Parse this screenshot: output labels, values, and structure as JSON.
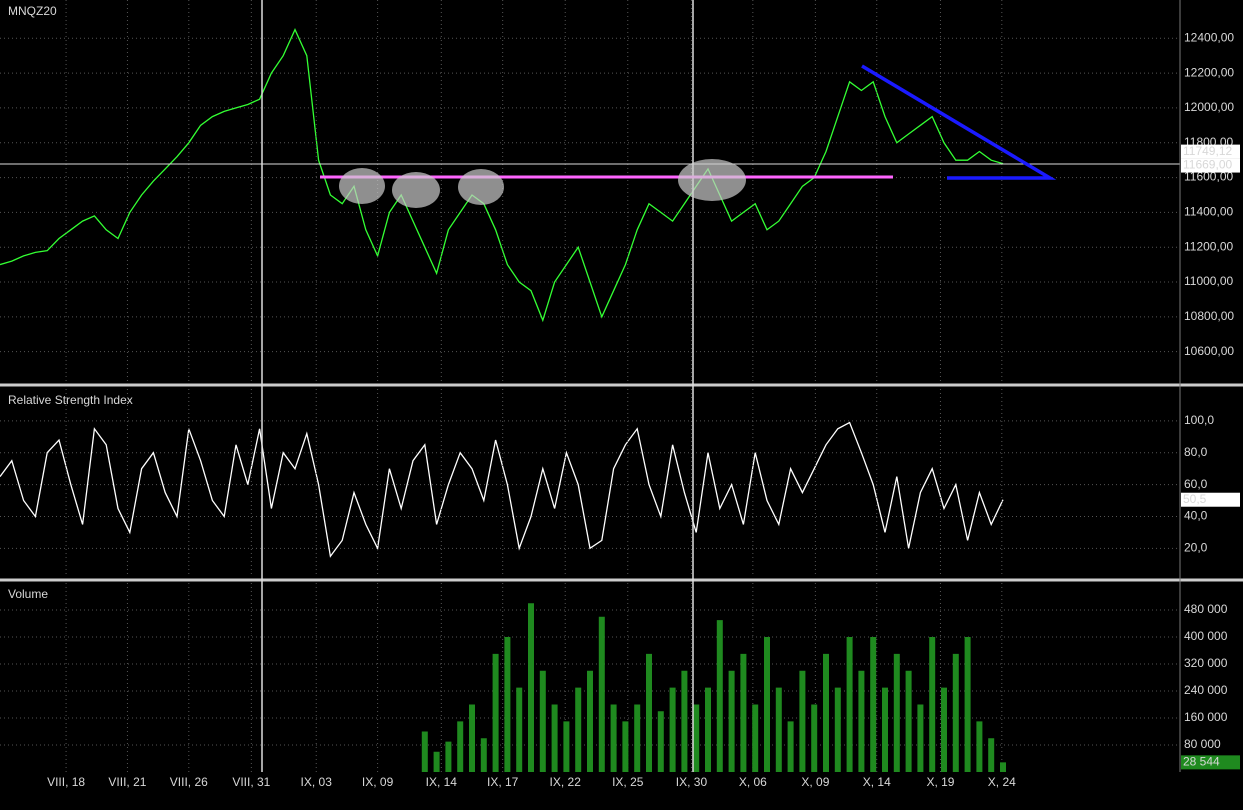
{
  "chart_data": [
    {
      "type": "line",
      "title": "MNQZ20",
      "color": "#33ff33",
      "x": [
        0,
        1,
        2,
        3,
        4,
        5,
        6,
        7,
        8,
        9,
        10,
        11,
        12,
        13,
        14,
        15,
        16,
        17,
        18,
        19,
        20,
        21,
        22,
        23,
        24,
        25,
        26,
        27,
        28,
        29,
        30,
        31,
        32,
        33,
        34,
        35,
        36,
        37,
        38,
        39,
        40,
        41,
        42,
        43,
        44,
        45,
        46,
        47,
        48,
        49,
        50,
        51,
        52,
        53,
        54,
        55,
        56,
        57,
        58,
        59,
        60,
        61,
        62,
        63,
        64,
        65,
        66,
        67,
        68,
        69,
        70,
        71,
        72,
        73,
        74,
        75,
        76,
        77,
        78,
        79,
        80,
        81,
        82,
        83,
        84,
        85
      ],
      "values": [
        11100,
        11120,
        11150,
        11170,
        11180,
        11250,
        11300,
        11350,
        11380,
        11300,
        11250,
        11400,
        11500,
        11580,
        11650,
        11720,
        11800,
        11900,
        11950,
        11980,
        12000,
        12020,
        12050,
        12200,
        12300,
        12450,
        12300,
        11700,
        11500,
        11450,
        11550,
        11300,
        11150,
        11400,
        11500,
        11350,
        11200,
        11050,
        11300,
        11400,
        11500,
        11450,
        11300,
        11100,
        11000,
        10950,
        10780,
        11000,
        11100,
        11200,
        11000,
        10800,
        10950,
        11100,
        11300,
        11450,
        11400,
        11350,
        11450,
        11550,
        11650,
        11500,
        11350,
        11400,
        11450,
        11300,
        11350,
        11450,
        11550,
        11600,
        11750,
        11950,
        12150,
        12100,
        12150,
        11950,
        11800,
        11850,
        11900,
        11950,
        11800,
        11700,
        11700,
        11750,
        11700,
        11680
      ],
      "xlim": [
        0,
        100
      ],
      "ylim": [
        10420,
        12620
      ],
      "yticks": [
        {
          "value": 10600,
          "label": "10600,00"
        },
        {
          "value": 10800,
          "label": "10800,00"
        },
        {
          "value": 11000,
          "label": "11000,00"
        },
        {
          "value": 11200,
          "label": "11200,00"
        },
        {
          "value": 11400,
          "label": "11400,00"
        },
        {
          "value": 11600,
          "label": "11600,00"
        },
        {
          "value": 11800,
          "label": "11800,00"
        },
        {
          "value": 12000,
          "label": "12000,00"
        },
        {
          "value": 12200,
          "label": "12200,00"
        },
        {
          "value": 12400,
          "label": "12400,00"
        }
      ],
      "last_values": [
        {
          "value": 11749.12,
          "label": "11749,12"
        },
        {
          "value": 11669,
          "label": "11669,00"
        }
      ],
      "grid": true
    },
    {
      "type": "line",
      "title": "Relative Strength Index",
      "color": "#ffffff",
      "x": [
        0,
        1,
        2,
        3,
        4,
        5,
        6,
        7,
        8,
        9,
        10,
        11,
        12,
        13,
        14,
        15,
        16,
        17,
        18,
        19,
        20,
        21,
        22,
        23,
        24,
        25,
        26,
        27,
        28,
        29,
        30,
        31,
        32,
        33,
        34,
        35,
        36,
        37,
        38,
        39,
        40,
        41,
        42,
        43,
        44,
        45,
        46,
        47,
        48,
        49,
        50,
        51,
        52,
        53,
        54,
        55,
        56,
        57,
        58,
        59,
        60,
        61,
        62,
        63,
        64,
        65,
        66,
        67,
        68,
        69,
        70,
        71,
        72,
        73,
        74,
        75,
        76,
        77,
        78,
        79,
        80,
        81,
        82,
        83,
        84,
        85
      ],
      "values": [
        65,
        75,
        50,
        40,
        80,
        88,
        60,
        35,
        95,
        85,
        45,
        30,
        70,
        80,
        55,
        40,
        95,
        75,
        50,
        40,
        85,
        60,
        95,
        45,
        80,
        70,
        92,
        60,
        15,
        25,
        55,
        35,
        20,
        70,
        45,
        75,
        85,
        35,
        60,
        80,
        70,
        50,
        88,
        60,
        20,
        40,
        70,
        45,
        80,
        60,
        20,
        25,
        70,
        85,
        95,
        60,
        40,
        85,
        55,
        30,
        80,
        45,
        60,
        35,
        80,
        50,
        35,
        70,
        55,
        70,
        85,
        95,
        99,
        80,
        60,
        30,
        65,
        20,
        55,
        70,
        45,
        60,
        25,
        55,
        35,
        50.5
      ],
      "xlim": [
        0,
        100
      ],
      "ylim": [
        2,
        120
      ],
      "yticks": [
        {
          "value": 20,
          "label": "20,0"
        },
        {
          "value": 40,
          "label": "40,0"
        },
        {
          "value": 60,
          "label": "60,0"
        },
        {
          "value": 80,
          "label": "80,0"
        },
        {
          "value": 100,
          "label": "100,0"
        }
      ],
      "last_values": [
        {
          "value": 50.5,
          "label": "50,5"
        }
      ],
      "grid": true
    },
    {
      "type": "bar",
      "title": "Volume",
      "color": "#1f8a1f",
      "x": [
        0,
        1,
        2,
        3,
        4,
        5,
        6,
        7,
        8,
        9,
        10,
        11,
        12,
        13,
        14,
        15,
        16,
        17,
        18,
        19,
        20,
        21,
        22,
        23,
        24,
        25,
        26,
        27,
        28,
        29,
        30,
        31,
        32,
        33,
        34,
        35,
        36,
        37,
        38,
        39,
        40,
        41,
        42,
        43,
        44,
        45,
        46,
        47,
        48,
        49,
        50,
        51,
        52,
        53,
        54,
        55,
        56,
        57,
        58,
        59,
        60,
        61,
        62,
        63,
        64,
        65,
        66,
        67,
        68,
        69,
        70,
        71,
        72,
        73,
        74,
        75,
        76,
        77,
        78,
        79,
        80,
        81,
        82,
        83,
        84,
        85
      ],
      "values": [
        0,
        0,
        0,
        0,
        0,
        0,
        0,
        0,
        0,
        0,
        0,
        0,
        0,
        0,
        0,
        0,
        0,
        0,
        0,
        0,
        0,
        0,
        0,
        0,
        0,
        0,
        0,
        0,
        0,
        0,
        0,
        0,
        0,
        0,
        0,
        0,
        120000,
        60000,
        90000,
        150000,
        200000,
        100000,
        350000,
        400000,
        250000,
        500000,
        300000,
        200000,
        150000,
        250000,
        300000,
        460000,
        200000,
        150000,
        200000,
        350000,
        180000,
        250000,
        300000,
        200000,
        250000,
        450000,
        300000,
        350000,
        200000,
        400000,
        250000,
        150000,
        300000,
        200000,
        350000,
        250000,
        400000,
        300000,
        400000,
        250000,
        350000,
        300000,
        200000,
        400000,
        250000,
        350000,
        400000,
        150000,
        100000,
        28544
      ],
      "xlim": [
        0,
        100
      ],
      "ylim": [
        0,
        560000
      ],
      "yticks": [
        {
          "value": 80000,
          "label": "80 000"
        },
        {
          "value": 160000,
          "label": "160 000"
        },
        {
          "value": 240000,
          "label": "240 000"
        },
        {
          "value": 320000,
          "label": "320 000"
        },
        {
          "value": 400000,
          "label": "400 000"
        },
        {
          "value": 480000,
          "label": "480 000"
        }
      ],
      "last_values": [
        {
          "value": 28544,
          "label": "28 544"
        }
      ],
      "xticks": [
        {
          "value": 5.6,
          "label": "VIII, 18"
        },
        {
          "value": 10.8,
          "label": "VIII, 21"
        },
        {
          "value": 16,
          "label": "VIII, 26"
        },
        {
          "value": 21.3,
          "label": "VIII, 31"
        },
        {
          "value": 26.8,
          "label": "IX, 03"
        },
        {
          "value": 32,
          "label": "IX, 09"
        },
        {
          "value": 37.4,
          "label": "IX, 14"
        },
        {
          "value": 42.6,
          "label": "IX, 17"
        },
        {
          "value": 47.9,
          "label": "IX, 22"
        },
        {
          "value": 53.2,
          "label": "IX, 25"
        },
        {
          "value": 58.6,
          "label": "IX, 30"
        },
        {
          "value": 63.8,
          "label": "X, 06"
        },
        {
          "value": 69.1,
          "label": "X, 09"
        },
        {
          "value": 74.3,
          "label": "X, 14"
        },
        {
          "value": 79.7,
          "label": "X, 19"
        },
        {
          "value": 84.9,
          "label": "X, 24"
        }
      ],
      "grid": true
    }
  ]
}
